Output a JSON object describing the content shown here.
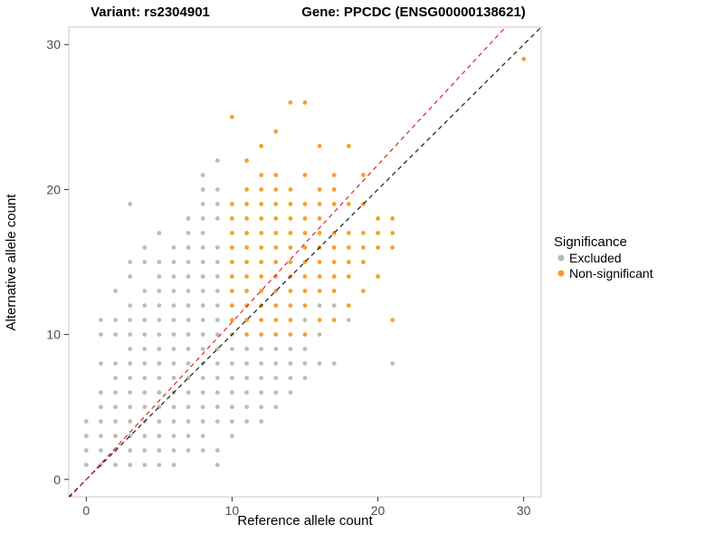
{
  "chart_data": {
    "type": "scatter",
    "titles": {
      "left": "Variant: rs2304901",
      "right": "Gene: PPCDC (ENSG00000138621)"
    },
    "xlabel": "Reference allele count",
    "ylabel": "Alternative allele count",
    "xlim": [
      -1.2,
      31.2
    ],
    "ylim": [
      -1.2,
      31.2
    ],
    "xticks": [
      0,
      10,
      20,
      30
    ],
    "yticks": [
      0,
      10,
      20,
      30
    ],
    "grid": "off",
    "panel_border_color": "#c8c8c8",
    "tick_color": "#333333",
    "tick_label_color": "#4d4d4d",
    "legend": {
      "title": "Significance",
      "position": "right",
      "items": [
        {
          "label": "Excluded",
          "color": "#b8b8b8"
        },
        {
          "label": "Non-significant",
          "color": "#f59b23"
        }
      ]
    },
    "lines": [
      {
        "name": "identity",
        "color": "#1a1a1a",
        "dash": true,
        "slope": 1.0,
        "intercept": 0
      },
      {
        "name": "fit",
        "color": "#e02424",
        "dash": true,
        "slope": 1.085,
        "intercept": 0
      }
    ],
    "series": [
      {
        "name": "Excluded",
        "color": "#b8b8b8",
        "points": [
          [
            0,
            1
          ],
          [
            0,
            2
          ],
          [
            0,
            3
          ],
          [
            0,
            4
          ],
          [
            1,
            1
          ],
          [
            1,
            2
          ],
          [
            1,
            3
          ],
          [
            1,
            4
          ],
          [
            1,
            5
          ],
          [
            1,
            6
          ],
          [
            1,
            8
          ],
          [
            1,
            10
          ],
          [
            1,
            11
          ],
          [
            2,
            1
          ],
          [
            2,
            2
          ],
          [
            2,
            3
          ],
          [
            2,
            4
          ],
          [
            2,
            5
          ],
          [
            2,
            6
          ],
          [
            2,
            7
          ],
          [
            2,
            8
          ],
          [
            2,
            10
          ],
          [
            2,
            11
          ],
          [
            2,
            13
          ],
          [
            3,
            1
          ],
          [
            3,
            2
          ],
          [
            3,
            3
          ],
          [
            3,
            4
          ],
          [
            3,
            5
          ],
          [
            3,
            6
          ],
          [
            3,
            7
          ],
          [
            3,
            8
          ],
          [
            3,
            9
          ],
          [
            3,
            10
          ],
          [
            3,
            11
          ],
          [
            3,
            12
          ],
          [
            3,
            14
          ],
          [
            3,
            15
          ],
          [
            3,
            19
          ],
          [
            4,
            1
          ],
          [
            4,
            2
          ],
          [
            4,
            3
          ],
          [
            4,
            4
          ],
          [
            4,
            5
          ],
          [
            4,
            6
          ],
          [
            4,
            7
          ],
          [
            4,
            8
          ],
          [
            4,
            9
          ],
          [
            4,
            10
          ],
          [
            4,
            11
          ],
          [
            4,
            12
          ],
          [
            4,
            13
          ],
          [
            4,
            15
          ],
          [
            4,
            16
          ],
          [
            5,
            1
          ],
          [
            5,
            2
          ],
          [
            5,
            3
          ],
          [
            5,
            4
          ],
          [
            5,
            5
          ],
          [
            5,
            6
          ],
          [
            5,
            7
          ],
          [
            5,
            8
          ],
          [
            5,
            9
          ],
          [
            5,
            10
          ],
          [
            5,
            11
          ],
          [
            5,
            12
          ],
          [
            5,
            13
          ],
          [
            5,
            14
          ],
          [
            5,
            15
          ],
          [
            5,
            17
          ],
          [
            6,
            1
          ],
          [
            6,
            2
          ],
          [
            6,
            3
          ],
          [
            6,
            4
          ],
          [
            6,
            5
          ],
          [
            6,
            6
          ],
          [
            6,
            7
          ],
          [
            6,
            8
          ],
          [
            6,
            9
          ],
          [
            6,
            10
          ],
          [
            6,
            11
          ],
          [
            6,
            12
          ],
          [
            6,
            13
          ],
          [
            6,
            14
          ],
          [
            6,
            15
          ],
          [
            6,
            16
          ],
          [
            7,
            2
          ],
          [
            7,
            3
          ],
          [
            7,
            4
          ],
          [
            7,
            5
          ],
          [
            7,
            6
          ],
          [
            7,
            7
          ],
          [
            7,
            8
          ],
          [
            7,
            9
          ],
          [
            7,
            10
          ],
          [
            7,
            11
          ],
          [
            7,
            12
          ],
          [
            7,
            13
          ],
          [
            7,
            14
          ],
          [
            7,
            15
          ],
          [
            7,
            16
          ],
          [
            7,
            17
          ],
          [
            7,
            18
          ],
          [
            8,
            2
          ],
          [
            8,
            3
          ],
          [
            8,
            4
          ],
          [
            8,
            5
          ],
          [
            8,
            6
          ],
          [
            8,
            7
          ],
          [
            8,
            8
          ],
          [
            8,
            9
          ],
          [
            8,
            10
          ],
          [
            8,
            11
          ],
          [
            8,
            12
          ],
          [
            8,
            13
          ],
          [
            8,
            14
          ],
          [
            8,
            15
          ],
          [
            8,
            16
          ],
          [
            8,
            17
          ],
          [
            8,
            18
          ],
          [
            8,
            19
          ],
          [
            8,
            20
          ],
          [
            8,
            21
          ],
          [
            9,
            1
          ],
          [
            9,
            2
          ],
          [
            9,
            4
          ],
          [
            9,
            5
          ],
          [
            9,
            6
          ],
          [
            9,
            7
          ],
          [
            9,
            8
          ],
          [
            9,
            9
          ],
          [
            9,
            10
          ],
          [
            9,
            11
          ],
          [
            9,
            12
          ],
          [
            9,
            13
          ],
          [
            9,
            14
          ],
          [
            9,
            15
          ],
          [
            9,
            16
          ],
          [
            9,
            18
          ],
          [
            9,
            19
          ],
          [
            9,
            20
          ],
          [
            9,
            22
          ],
          [
            10,
            3
          ],
          [
            10,
            4
          ],
          [
            10,
            5
          ],
          [
            10,
            6
          ],
          [
            10,
            7
          ],
          [
            10,
            8
          ],
          [
            10,
            9
          ],
          [
            10,
            10
          ],
          [
            11,
            4
          ],
          [
            11,
            5
          ],
          [
            11,
            6
          ],
          [
            11,
            7
          ],
          [
            11,
            8
          ],
          [
            11,
            9
          ],
          [
            12,
            4
          ],
          [
            12,
            5
          ],
          [
            12,
            6
          ],
          [
            12,
            7
          ],
          [
            12,
            8
          ],
          [
            12,
            9
          ],
          [
            13,
            5
          ],
          [
            13,
            6
          ],
          [
            13,
            7
          ],
          [
            13,
            8
          ],
          [
            13,
            9
          ],
          [
            14,
            6
          ],
          [
            14,
            7
          ],
          [
            14,
            8
          ],
          [
            14,
            9
          ],
          [
            15,
            7
          ],
          [
            15,
            8
          ],
          [
            15,
            9
          ],
          [
            15,
            11
          ],
          [
            16,
            8
          ],
          [
            16,
            10
          ],
          [
            16,
            12
          ],
          [
            17,
            8
          ],
          [
            17,
            12
          ],
          [
            18,
            11
          ],
          [
            21,
            8
          ]
        ]
      },
      {
        "name": "Non-significant",
        "color": "#f59b23",
        "points": [
          [
            10,
            11
          ],
          [
            10,
            12
          ],
          [
            10,
            13
          ],
          [
            10,
            14
          ],
          [
            10,
            15
          ],
          [
            10,
            16
          ],
          [
            10,
            17
          ],
          [
            10,
            18
          ],
          [
            10,
            19
          ],
          [
            10,
            25
          ],
          [
            11,
            10
          ],
          [
            11,
            11
          ],
          [
            11,
            12
          ],
          [
            11,
            13
          ],
          [
            11,
            14
          ],
          [
            11,
            15
          ],
          [
            11,
            16
          ],
          [
            11,
            17
          ],
          [
            11,
            18
          ],
          [
            11,
            19
          ],
          [
            11,
            20
          ],
          [
            11,
            22
          ],
          [
            12,
            10
          ],
          [
            12,
            11
          ],
          [
            12,
            12
          ],
          [
            12,
            13
          ],
          [
            12,
            14
          ],
          [
            12,
            15
          ],
          [
            12,
            16
          ],
          [
            12,
            17
          ],
          [
            12,
            18
          ],
          [
            12,
            19
          ],
          [
            12,
            20
          ],
          [
            12,
            21
          ],
          [
            12,
            23
          ],
          [
            13,
            10
          ],
          [
            13,
            11
          ],
          [
            13,
            12
          ],
          [
            13,
            13
          ],
          [
            13,
            14
          ],
          [
            13,
            15
          ],
          [
            13,
            16
          ],
          [
            13,
            17
          ],
          [
            13,
            18
          ],
          [
            13,
            19
          ],
          [
            13,
            20
          ],
          [
            13,
            21
          ],
          [
            13,
            24
          ],
          [
            14,
            10
          ],
          [
            14,
            11
          ],
          [
            14,
            12
          ],
          [
            14,
            13
          ],
          [
            14,
            14
          ],
          [
            14,
            15
          ],
          [
            14,
            16
          ],
          [
            14,
            17
          ],
          [
            14,
            18
          ],
          [
            14,
            19
          ],
          [
            14,
            20
          ],
          [
            14,
            26
          ],
          [
            15,
            10
          ],
          [
            15,
            12
          ],
          [
            15,
            13
          ],
          [
            15,
            14
          ],
          [
            15,
            15
          ],
          [
            15,
            16
          ],
          [
            15,
            17
          ],
          [
            15,
            18
          ],
          [
            15,
            19
          ],
          [
            15,
            21
          ],
          [
            15,
            26
          ],
          [
            16,
            11
          ],
          [
            16,
            13
          ],
          [
            16,
            14
          ],
          [
            16,
            15
          ],
          [
            16,
            16
          ],
          [
            16,
            17
          ],
          [
            16,
            18
          ],
          [
            16,
            19
          ],
          [
            16,
            20
          ],
          [
            16,
            23
          ],
          [
            17,
            11
          ],
          [
            17,
            13
          ],
          [
            17,
            14
          ],
          [
            17,
            15
          ],
          [
            17,
            16
          ],
          [
            17,
            17
          ],
          [
            17,
            19
          ],
          [
            17,
            20
          ],
          [
            17,
            21
          ],
          [
            18,
            12
          ],
          [
            18,
            14
          ],
          [
            18,
            15
          ],
          [
            18,
            16
          ],
          [
            18,
            17
          ],
          [
            18,
            19
          ],
          [
            18,
            23
          ],
          [
            19,
            13
          ],
          [
            19,
            15
          ],
          [
            19,
            16
          ],
          [
            19,
            17
          ],
          [
            19,
            19
          ],
          [
            19,
            21
          ],
          [
            20,
            14
          ],
          [
            20,
            16
          ],
          [
            20,
            17
          ],
          [
            20,
            18
          ],
          [
            21,
            11
          ],
          [
            21,
            16
          ],
          [
            21,
            17
          ],
          [
            21,
            18
          ],
          [
            30,
            29
          ]
        ]
      }
    ]
  }
}
